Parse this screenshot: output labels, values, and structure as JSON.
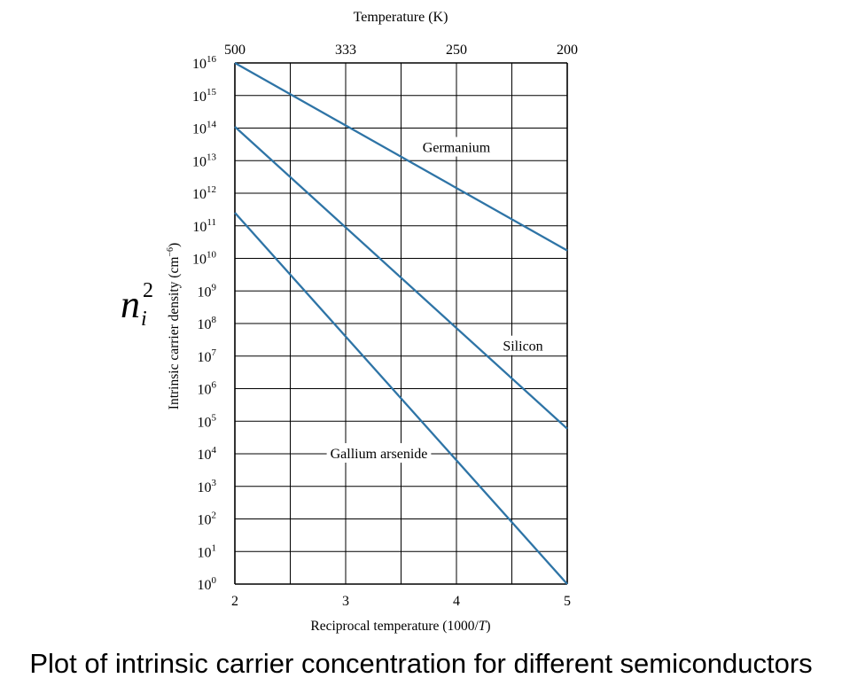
{
  "chart_data": {
    "type": "line",
    "top_axis_title": "Temperature (K)",
    "top_ticks": [
      {
        "x": 2,
        "label": "500"
      },
      {
        "x": 3,
        "label": "333"
      },
      {
        "x": 4,
        "label": "250"
      },
      {
        "x": 5,
        "label": "200"
      }
    ],
    "xlabel_prefix": "Reciprocal temperature (1000/",
    "xlabel_var": "T",
    "xlabel_suffix": ")",
    "ylabel": "Intrinsic carrier density (cm",
    "ylabel_exp": "−6",
    "ylabel_suffix": ")",
    "ni_symbol": "n",
    "ni_sub": "i",
    "ni_sup": "2",
    "y_scale": "log",
    "xlim": [
      2,
      5
    ],
    "ylim_exp": [
      0,
      16
    ],
    "x_ticks": [
      {
        "x": 2,
        "label": "2"
      },
      {
        "x": 3,
        "label": "3"
      },
      {
        "x": 4,
        "label": "4"
      },
      {
        "x": 5,
        "label": "5"
      }
    ],
    "x_grid": [
      2,
      2.5,
      3,
      3.5,
      4,
      4.5,
      5
    ],
    "y_tick_base": "10",
    "y_tick_exponents": [
      "0",
      "1",
      "2",
      "3",
      "4",
      "5",
      "6",
      "7",
      "8",
      "9",
      "10",
      "11",
      "12",
      "13",
      "14",
      "15",
      "16"
    ],
    "grid": true,
    "line_color": "#2e74a6",
    "series": [
      {
        "name": "Germanium",
        "x": [
          2,
          5
        ],
        "y_log10": [
          16,
          10.24
        ],
        "label_at": [
          4.0,
          13.4
        ]
      },
      {
        "name": "Silicon",
        "x": [
          2,
          5
        ],
        "y_log10": [
          14.04,
          4.77
        ],
        "label_at": [
          4.6,
          7.3
        ]
      },
      {
        "name": "Gallium arsenide",
        "x": [
          2,
          5
        ],
        "y_log10": [
          11.4,
          0
        ],
        "label_at": [
          3.3,
          4.0
        ]
      }
    ]
  },
  "caption": "Plot of intrinsic carrier concentration for different semiconductors"
}
